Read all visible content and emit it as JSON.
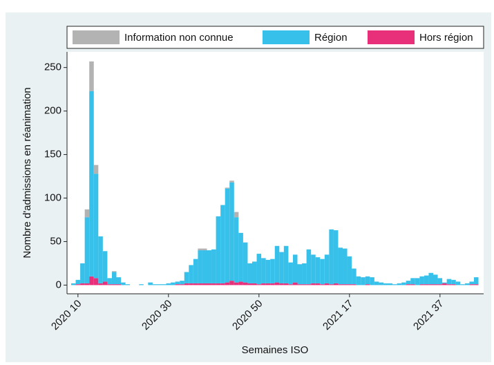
{
  "chart_data": {
    "type": "stacked-bar",
    "xlabel": "Semaines ISO",
    "ylabel": "Nombre d'admissions en réanimation",
    "categories": [
      null,
      "2020 10",
      null,
      null,
      null,
      null,
      null,
      null,
      null,
      null,
      null,
      null,
      null,
      null,
      null,
      null,
      null,
      null,
      null,
      null,
      null,
      "2020 30",
      null,
      null,
      null,
      null,
      null,
      null,
      null,
      null,
      null,
      null,
      null,
      null,
      null,
      null,
      null,
      null,
      null,
      null,
      null,
      "2020 50",
      null,
      null,
      null,
      null,
      null,
      null,
      null,
      null,
      null,
      null,
      null,
      null,
      null,
      null,
      null,
      null,
      null,
      null,
      null,
      "2021 17",
      null,
      null,
      null,
      null,
      null,
      null,
      null,
      null,
      null,
      null,
      null,
      null,
      null,
      null,
      null,
      null,
      null,
      null,
      null,
      "2021 37",
      null,
      null,
      null,
      null,
      null,
      null,
      null,
      null
    ],
    "series": [
      {
        "name": "Information non connue",
        "color": "#b3b3b3",
        "values": [
          0,
          0,
          0,
          9,
          34,
          10,
          0,
          0,
          0,
          1,
          0,
          0,
          0,
          0,
          0,
          0,
          0,
          0,
          0,
          0,
          0,
          0,
          0,
          0,
          0,
          0,
          0,
          0,
          2,
          2,
          0,
          0,
          0,
          0,
          1,
          2,
          6,
          0,
          0,
          0,
          0,
          0,
          0,
          0,
          0,
          0,
          0,
          0,
          0,
          0,
          0,
          0,
          0,
          0,
          0,
          0,
          0,
          0,
          0,
          0,
          0,
          0,
          0,
          0,
          0,
          0,
          0,
          0,
          0,
          0,
          0,
          0,
          0,
          0,
          0,
          0,
          0,
          0,
          0,
          0,
          0,
          0,
          0,
          0,
          0,
          0,
          0,
          0,
          0,
          0
        ]
      },
      {
        "name": "Région",
        "color": "#37c0ea",
        "values": [
          2,
          5,
          23,
          76,
          213,
          120,
          54,
          35,
          7,
          14,
          8,
          3,
          1,
          0,
          0,
          1,
          0,
          3,
          1,
          1,
          1,
          2,
          3,
          3,
          4,
          13,
          21,
          28,
          38,
          38,
          38,
          39,
          77,
          90,
          108,
          113,
          75,
          56,
          46,
          23,
          25,
          35,
          29,
          27,
          28,
          42,
          36,
          43,
          25,
          32,
          23,
          24,
          40,
          33,
          30,
          29,
          33,
          63,
          61,
          42,
          41,
          32,
          18,
          10,
          9,
          9,
          9,
          4,
          3,
          2,
          2,
          1,
          2,
          3,
          4,
          7,
          8,
          9,
          10,
          13,
          11,
          7,
          1,
          6,
          5,
          4,
          1,
          2,
          3,
          8
        ]
      },
      {
        "name": "Hors région",
        "color": "#e8307a",
        "values": [
          0,
          1,
          2,
          2,
          10,
          8,
          2,
          4,
          1,
          1,
          1,
          0,
          0,
          0,
          0,
          0,
          0,
          0,
          0,
          0,
          0,
          0,
          0,
          1,
          1,
          2,
          2,
          2,
          2,
          2,
          2,
          2,
          2,
          2,
          3,
          5,
          3,
          4,
          3,
          2,
          2,
          1,
          2,
          2,
          2,
          3,
          2,
          2,
          1,
          3,
          1,
          1,
          1,
          2,
          2,
          1,
          2,
          1,
          2,
          1,
          1,
          1,
          1,
          0,
          0,
          1,
          0,
          0,
          0,
          0,
          0,
          0,
          0,
          0,
          1,
          1,
          0,
          1,
          1,
          1,
          1,
          1,
          2,
          1,
          1,
          0,
          0,
          0,
          1,
          1
        ]
      }
    ],
    "ylim": [
      -10,
      268
    ],
    "yticks": [
      0,
      50,
      100,
      150,
      200,
      250
    ],
    "grid": false
  }
}
